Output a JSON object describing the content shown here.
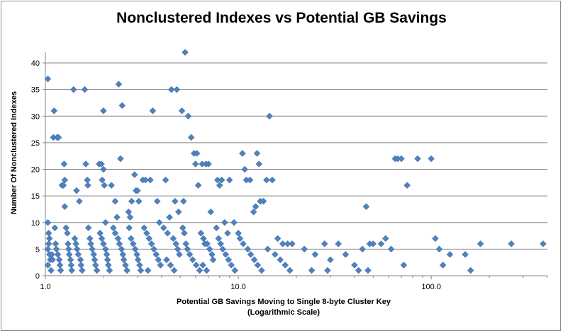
{
  "chart_data": {
    "type": "scatter",
    "title": "Nonclustered Indexes vs Potential GB Savings",
    "xlabel_line1": "Potential GB Savings  Moving to Single 8-byte Cluster Key",
    "xlabel_line2": "(Logarithmic Scale)",
    "ylabel": "Number Of Nonclustered Indexes",
    "xscale": "log",
    "xlim": [
      1.0,
      400.0
    ],
    "ylim": [
      0,
      42
    ],
    "xticks": [
      "1.0",
      "10.0",
      "100.0"
    ],
    "yticks": [
      "0",
      "5",
      "10",
      "15",
      "20",
      "25",
      "30",
      "35",
      "40"
    ],
    "grid": "horizontal",
    "marker_color": "#4f81bd",
    "marker": "diamond",
    "points": [
      [
        1.03,
        37
      ],
      [
        1.03,
        10
      ],
      [
        1.04,
        8
      ],
      [
        1.05,
        7
      ],
      [
        1.04,
        6
      ],
      [
        1.03,
        5
      ],
      [
        1.05,
        4
      ],
      [
        1.06,
        3
      ],
      [
        1.03,
        2
      ],
      [
        1.07,
        1
      ],
      [
        1.08,
        4
      ],
      [
        1.09,
        3
      ],
      [
        1.1,
        26
      ],
      [
        1.11,
        31
      ],
      [
        1.15,
        26
      ],
      [
        1.17,
        26
      ],
      [
        1.12,
        9
      ],
      [
        1.13,
        6
      ],
      [
        1.14,
        5
      ],
      [
        1.16,
        4
      ],
      [
        1.18,
        3
      ],
      [
        1.19,
        2
      ],
      [
        1.2,
        1
      ],
      [
        1.22,
        17
      ],
      [
        1.24,
        17
      ],
      [
        1.25,
        21
      ],
      [
        1.26,
        18
      ],
      [
        1.26,
        13
      ],
      [
        1.28,
        9
      ],
      [
        1.3,
        8
      ],
      [
        1.31,
        6
      ],
      [
        1.32,
        5
      ],
      [
        1.33,
        4
      ],
      [
        1.35,
        3
      ],
      [
        1.36,
        2
      ],
      [
        1.37,
        1
      ],
      [
        1.4,
        35
      ],
      [
        1.45,
        16
      ],
      [
        1.5,
        14
      ],
      [
        1.42,
        7
      ],
      [
        1.44,
        6
      ],
      [
        1.46,
        5
      ],
      [
        1.48,
        4
      ],
      [
        1.52,
        3
      ],
      [
        1.53,
        2
      ],
      [
        1.55,
        1
      ],
      [
        1.6,
        35
      ],
      [
        1.62,
        21
      ],
      [
        1.65,
        18
      ],
      [
        1.66,
        17
      ],
      [
        1.67,
        9
      ],
      [
        1.7,
        7
      ],
      [
        1.72,
        6
      ],
      [
        1.75,
        5
      ],
      [
        1.78,
        4
      ],
      [
        1.8,
        3
      ],
      [
        1.82,
        2
      ],
      [
        1.85,
        1
      ],
      [
        1.9,
        21
      ],
      [
        1.95,
        21
      ],
      [
        2.0,
        20
      ],
      [
        1.97,
        18
      ],
      [
        2.0,
        31
      ],
      [
        2.02,
        17
      ],
      [
        2.05,
        10
      ],
      [
        1.92,
        8
      ],
      [
        1.96,
        7
      ],
      [
        2.0,
        6
      ],
      [
        2.05,
        5
      ],
      [
        2.08,
        4
      ],
      [
        2.1,
        3
      ],
      [
        2.12,
        2
      ],
      [
        2.15,
        1
      ],
      [
        2.2,
        17
      ],
      [
        2.3,
        14
      ],
      [
        2.35,
        11
      ],
      [
        2.4,
        36
      ],
      [
        2.45,
        22
      ],
      [
        2.5,
        32
      ],
      [
        2.25,
        9
      ],
      [
        2.3,
        8
      ],
      [
        2.38,
        7
      ],
      [
        2.42,
        6
      ],
      [
        2.48,
        5
      ],
      [
        2.52,
        4
      ],
      [
        2.55,
        3
      ],
      [
        2.6,
        2
      ],
      [
        2.65,
        1
      ],
      [
        2.7,
        12
      ],
      [
        2.75,
        11
      ],
      [
        2.8,
        14
      ],
      [
        2.9,
        19
      ],
      [
        2.95,
        16
      ],
      [
        3.0,
        16
      ],
      [
        3.05,
        14
      ],
      [
        2.72,
        9
      ],
      [
        2.78,
        7
      ],
      [
        2.85,
        6
      ],
      [
        2.92,
        5
      ],
      [
        2.98,
        4
      ],
      [
        3.02,
        3
      ],
      [
        3.08,
        2
      ],
      [
        3.12,
        1
      ],
      [
        3.2,
        18
      ],
      [
        3.3,
        18
      ],
      [
        3.5,
        18
      ],
      [
        3.6,
        31
      ],
      [
        3.8,
        14
      ],
      [
        3.9,
        10
      ],
      [
        3.25,
        9
      ],
      [
        3.35,
        8
      ],
      [
        3.45,
        7
      ],
      [
        3.55,
        6
      ],
      [
        3.65,
        5
      ],
      [
        3.75,
        4
      ],
      [
        3.85,
        3
      ],
      [
        3.95,
        2
      ],
      [
        3.4,
        1
      ],
      [
        4.2,
        18
      ],
      [
        4.4,
        11
      ],
      [
        4.5,
        35
      ],
      [
        4.7,
        14
      ],
      [
        4.8,
        35
      ],
      [
        4.9,
        12
      ],
      [
        4.1,
        9
      ],
      [
        4.3,
        8
      ],
      [
        4.6,
        7
      ],
      [
        4.75,
        6
      ],
      [
        4.85,
        5
      ],
      [
        4.95,
        4
      ],
      [
        4.25,
        3
      ],
      [
        4.45,
        2
      ],
      [
        4.65,
        1
      ],
      [
        5.1,
        31
      ],
      [
        5.3,
        42
      ],
      [
        5.2,
        14
      ],
      [
        5.5,
        30
      ],
      [
        5.7,
        26
      ],
      [
        5.9,
        23
      ],
      [
        6.0,
        21
      ],
      [
        6.1,
        23
      ],
      [
        6.2,
        17
      ],
      [
        5.15,
        9
      ],
      [
        5.25,
        8
      ],
      [
        5.35,
        6
      ],
      [
        5.45,
        5
      ],
      [
        5.6,
        4
      ],
      [
        5.8,
        3
      ],
      [
        6.05,
        2
      ],
      [
        6.3,
        1
      ],
      [
        6.5,
        21
      ],
      [
        6.8,
        21
      ],
      [
        7.0,
        21
      ],
      [
        7.2,
        12
      ],
      [
        6.4,
        8
      ],
      [
        6.6,
        7
      ],
      [
        6.7,
        6
      ],
      [
        6.9,
        6
      ],
      [
        7.1,
        5
      ],
      [
        7.3,
        4
      ],
      [
        7.4,
        3
      ],
      [
        6.55,
        2
      ],
      [
        6.85,
        1
      ],
      [
        7.8,
        18
      ],
      [
        8.0,
        17
      ],
      [
        8.2,
        18
      ],
      [
        8.5,
        10
      ],
      [
        8.8,
        8
      ],
      [
        9.0,
        18
      ],
      [
        9.5,
        10
      ],
      [
        7.7,
        9
      ],
      [
        7.9,
        7
      ],
      [
        8.1,
        6
      ],
      [
        8.3,
        5
      ],
      [
        8.6,
        4
      ],
      [
        8.9,
        3
      ],
      [
        9.2,
        2
      ],
      [
        9.6,
        1
      ],
      [
        10.0,
        8
      ],
      [
        10.5,
        23
      ],
      [
        10.8,
        20
      ],
      [
        11.0,
        18
      ],
      [
        11.5,
        18
      ],
      [
        12.0,
        12
      ],
      [
        12.3,
        13
      ],
      [
        12.5,
        23
      ],
      [
        12.8,
        21
      ],
      [
        13.0,
        14
      ],
      [
        13.5,
        14
      ],
      [
        10.2,
        7
      ],
      [
        10.6,
        6
      ],
      [
        11.2,
        5
      ],
      [
        11.6,
        4
      ],
      [
        12.1,
        3
      ],
      [
        12.6,
        2
      ],
      [
        13.2,
        1
      ],
      [
        14.0,
        18
      ],
      [
        14.5,
        30
      ],
      [
        15.0,
        18
      ],
      [
        16.0,
        7
      ],
      [
        17.0,
        6
      ],
      [
        18.0,
        6
      ],
      [
        19.0,
        6
      ],
      [
        14.2,
        5
      ],
      [
        15.5,
        4
      ],
      [
        16.5,
        3
      ],
      [
        17.5,
        2
      ],
      [
        18.5,
        1
      ],
      [
        22.0,
        5
      ],
      [
        25.0,
        4
      ],
      [
        28.0,
        6
      ],
      [
        30.0,
        3
      ],
      [
        33.0,
        6
      ],
      [
        36.0,
        4
      ],
      [
        40.0,
        2
      ],
      [
        44.0,
        5
      ],
      [
        46.0,
        13
      ],
      [
        48.0,
        6
      ],
      [
        50.0,
        6
      ],
      [
        24.0,
        1
      ],
      [
        29.0,
        1
      ],
      [
        42.0,
        1
      ],
      [
        47.0,
        1
      ],
      [
        55.0,
        6
      ],
      [
        58.0,
        7
      ],
      [
        62.0,
        5
      ],
      [
        65.0,
        22
      ],
      [
        67.0,
        22
      ],
      [
        70.0,
        22
      ],
      [
        72.0,
        2
      ],
      [
        75.0,
        17
      ],
      [
        85.0,
        22
      ],
      [
        100.0,
        22
      ],
      [
        105.0,
        7
      ],
      [
        110.0,
        5
      ],
      [
        115.0,
        2
      ],
      [
        125.0,
        4
      ],
      [
        150.0,
        4
      ],
      [
        160.0,
        1
      ],
      [
        180.0,
        6
      ],
      [
        260.0,
        6
      ],
      [
        380.0,
        6
      ]
    ]
  }
}
